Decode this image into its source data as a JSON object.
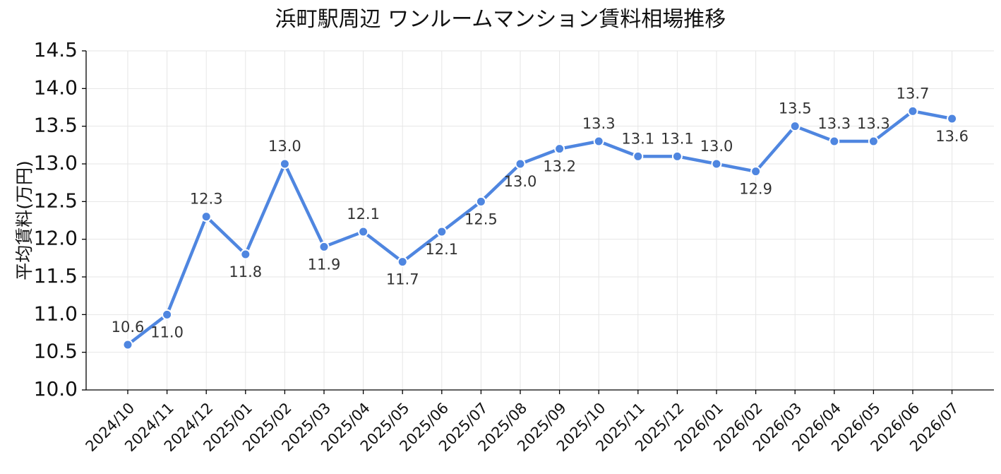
{
  "chart_data": {
    "type": "line",
    "title": "浜町駅周辺 ワンルームマンション賃料相場推移",
    "xlabel": "",
    "ylabel": "平均賃料(万円)",
    "ylim": [
      10.0,
      14.5
    ],
    "yticks": [
      "10.0",
      "10.5",
      "11.0",
      "11.5",
      "12.0",
      "12.5",
      "13.0",
      "13.5",
      "14.0",
      "14.5"
    ],
    "grid": true,
    "legend": "none",
    "line_color": "#4f86e0",
    "categories": [
      "2024/10",
      "2024/11",
      "2024/12",
      "2025/01",
      "2025/02",
      "2025/03",
      "2025/04",
      "2025/05",
      "2025/06",
      "2025/07",
      "2025/08",
      "2025/09",
      "2025/10",
      "2025/11",
      "2025/12",
      "2026/01",
      "2026/02",
      "2026/03",
      "2026/04",
      "2026/05",
      "2026/06",
      "2026/07"
    ],
    "values": [
      10.6,
      11.0,
      12.3,
      11.8,
      13.0,
      11.9,
      12.1,
      11.7,
      12.1,
      12.5,
      13.0,
      13.2,
      13.3,
      13.1,
      13.1,
      13.0,
      12.9,
      13.5,
      13.3,
      13.3,
      13.7,
      13.6
    ],
    "labels": [
      "10.6",
      "11.0",
      "12.3",
      "11.8",
      "13.0",
      "11.9",
      "12.1",
      "11.7",
      "12.1",
      "12.5",
      "13.0",
      "13.2",
      "13.3",
      "13.1",
      "13.1",
      "13.0",
      "12.9",
      "13.5",
      "13.3",
      "13.3",
      "13.7",
      "13.6"
    ]
  }
}
